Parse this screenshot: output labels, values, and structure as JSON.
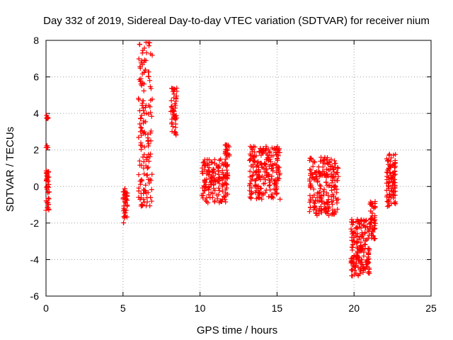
{
  "chart_data": {
    "type": "scatter",
    "title": "Day 332 of 2019, Sidereal Day-to-day VTEC variation (SDTVAR) for receiver nium",
    "xlabel": "GPS time / hours",
    "ylabel": "SDTVAR / TECUs",
    "xlim": [
      0,
      25
    ],
    "ylim": [
      -6,
      8
    ],
    "xticks": [
      0,
      5,
      10,
      15,
      20,
      25
    ],
    "yticks": [
      -6,
      -4,
      -2,
      0,
      2,
      4,
      6,
      8
    ],
    "grid": true,
    "marker": "+",
    "marker_color": "#ff0000",
    "clusters": [
      {
        "x_range": [
          0.0,
          0.15
        ],
        "y_range": [
          3.6,
          3.9
        ],
        "points": 6
      },
      {
        "x_range": [
          0.0,
          0.15
        ],
        "y_range": [
          2.1,
          2.3
        ],
        "points": 5
      },
      {
        "x_range": [
          0.0,
          0.2
        ],
        "y_range": [
          -1.5,
          0.9
        ],
        "points": 40
      },
      {
        "x_range": [
          5.0,
          5.3
        ],
        "y_range": [
          -2.0,
          -0.1
        ],
        "points": 40
      },
      {
        "x_range": [
          6.0,
          6.9
        ],
        "y_range": [
          -1.1,
          8.0
        ],
        "points": 150
      },
      {
        "x_range": [
          8.1,
          8.5
        ],
        "y_range": [
          2.7,
          5.5
        ],
        "points": 50
      },
      {
        "x_range": [
          10.1,
          11.8
        ],
        "y_range": [
          -0.9,
          1.5
        ],
        "points": 160
      },
      {
        "x_range": [
          11.6,
          11.9
        ],
        "y_range": [
          1.6,
          2.3
        ],
        "points": 20
      },
      {
        "x_range": [
          13.2,
          15.2
        ],
        "y_range": [
          -0.7,
          2.2
        ],
        "points": 220
      },
      {
        "x_range": [
          17.1,
          19.0
        ],
        "y_range": [
          -1.6,
          1.6
        ],
        "points": 200
      },
      {
        "x_range": [
          19.8,
          21.0
        ],
        "y_range": [
          -4.9,
          -1.8
        ],
        "points": 180
      },
      {
        "x_range": [
          21.0,
          21.4
        ],
        "y_range": [
          -3.0,
          -0.8
        ],
        "points": 50
      },
      {
        "x_range": [
          22.1,
          22.7
        ],
        "y_range": [
          -1.1,
          1.8
        ],
        "points": 90
      }
    ]
  }
}
